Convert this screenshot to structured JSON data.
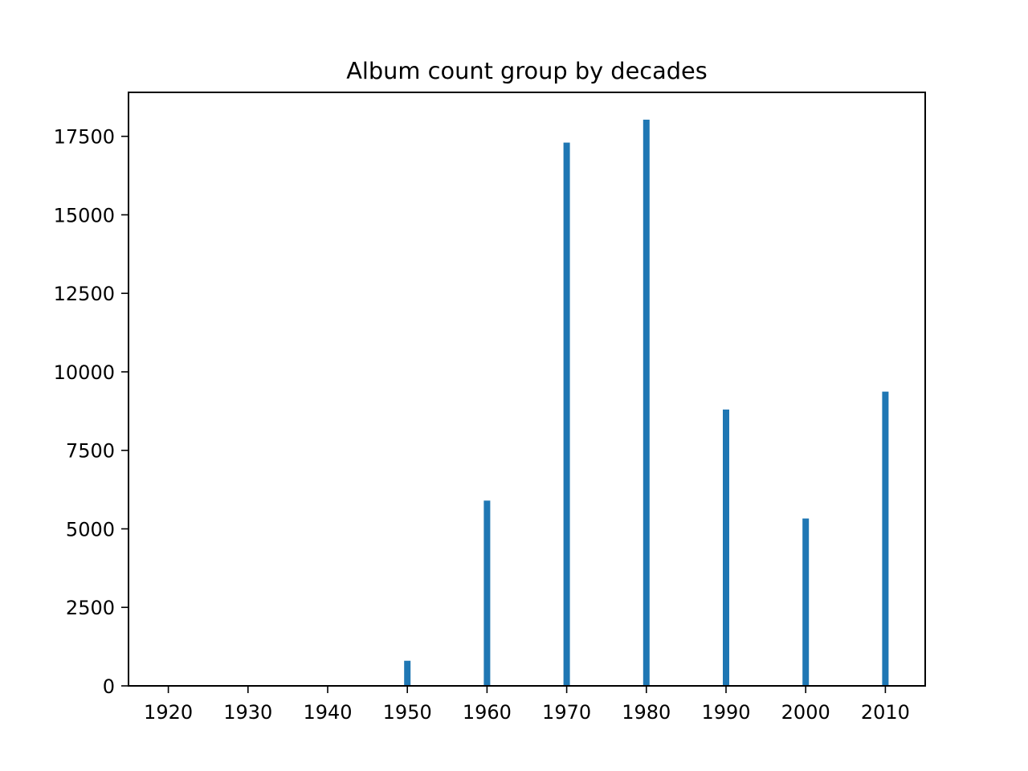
{
  "chart_data": {
    "type": "bar",
    "title": "Album count group by decades",
    "xlabel": "",
    "ylabel": "",
    "categories": [
      "1920",
      "1930",
      "1940",
      "1950",
      "1960",
      "1970",
      "1980",
      "1990",
      "2000",
      "2010"
    ],
    "x": [
      1920,
      1930,
      1940,
      1950,
      1960,
      1970,
      1980,
      1990,
      2000,
      2010
    ],
    "values": [
      0,
      0,
      0,
      800,
      5900,
      17300,
      18030,
      8800,
      5330,
      9370
    ],
    "xlim": [
      1915,
      2015
    ],
    "ylim": [
      0,
      18900
    ],
    "yticks": [
      0,
      2500,
      5000,
      7500,
      10000,
      12500,
      15000,
      17500
    ],
    "grid": false,
    "bar_color": "#1f77b4"
  }
}
